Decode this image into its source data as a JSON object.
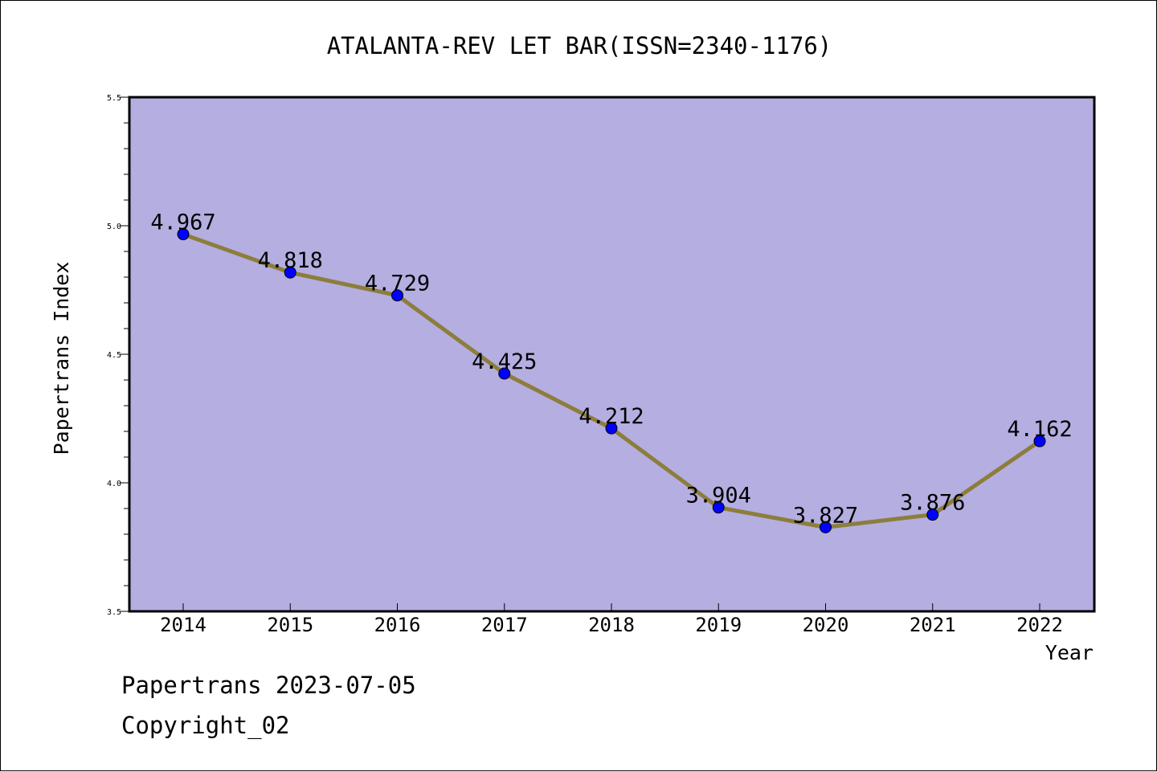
{
  "chart_data": {
    "type": "line",
    "title": "ATALANTA-REV LET BAR(ISSN=2340-1176)",
    "xlabel": "Year",
    "ylabel": "Papertrans Index",
    "categories": [
      "2014",
      "2015",
      "2016",
      "2017",
      "2018",
      "2019",
      "2020",
      "2021",
      "2022"
    ],
    "series": [
      {
        "values": [
          4.967,
          4.818,
          4.729,
          4.425,
          4.212,
          3.904,
          3.827,
          3.876,
          4.162
        ]
      }
    ],
    "data_labels": [
      "4.967",
      "4.818",
      "4.729",
      "4.425",
      "4.212",
      "3.904",
      "3.827",
      "3.876",
      "4.162"
    ],
    "ylim": [
      3.5,
      5.5
    ],
    "yticks": [
      "3.5",
      "4.0",
      "4.5",
      "5.0",
      "5.5"
    ],
    "grid": false,
    "colors": {
      "plot_background": "#b4aee1",
      "line": "#8c7d3c",
      "marker": "#0000ff"
    }
  },
  "footer": {
    "source": "Papertrans 2023-07-05",
    "copyright": "Copyright_02"
  }
}
